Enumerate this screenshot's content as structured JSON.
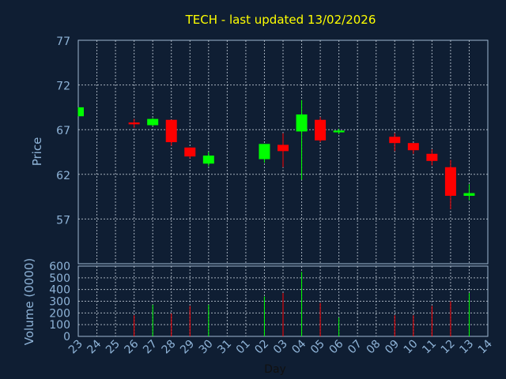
{
  "chart_data": {
    "type": "candlestick",
    "title": "TECH - last updated 13/02/2026",
    "price_panel": {
      "ylabel": "Price",
      "ylim": [
        52,
        77
      ],
      "yticks": [
        "57",
        "62",
        "67",
        "72",
        "77"
      ]
    },
    "volume_panel": {
      "ylabel": "Volume (0000)",
      "ylim": [
        0,
        600
      ],
      "yticks": [
        "0",
        "100",
        "200",
        "300",
        "400",
        "500",
        "600"
      ]
    },
    "xlabel": "Day",
    "x_ticks": [
      "23",
      "24",
      "25",
      "26",
      "27",
      "28",
      "29",
      "30",
      "31",
      "01",
      "02",
      "03",
      "04",
      "05",
      "06",
      "07",
      "08",
      "09",
      "10",
      "11",
      "12",
      "13",
      "14"
    ],
    "candles": [
      {
        "day": "23",
        "open": 68.5,
        "close": 69.5,
        "high": 69.5,
        "low": 68.5,
        "volume": 0
      },
      {
        "day": "26",
        "open": 67.8,
        "close": 67.6,
        "high": 68.2,
        "low": 67.2,
        "volume": 180
      },
      {
        "day": "27",
        "open": 67.5,
        "close": 68.2,
        "high": 68.3,
        "low": 67.4,
        "volume": 270
      },
      {
        "day": "28",
        "open": 68.1,
        "close": 65.6,
        "high": 68.1,
        "low": 65.2,
        "volume": 195
      },
      {
        "day": "29",
        "open": 65.0,
        "close": 64.0,
        "high": 65.0,
        "low": 63.8,
        "volume": 260
      },
      {
        "day": "30",
        "open": 63.2,
        "close": 64.1,
        "high": 64.5,
        "low": 62.9,
        "volume": 270
      },
      {
        "day": "02",
        "open": 63.7,
        "close": 65.4,
        "high": 65.4,
        "low": 63.3,
        "volume": 340
      },
      {
        "day": "03",
        "open": 65.3,
        "close": 64.6,
        "high": 66.6,
        "low": 62.8,
        "volume": 370
      },
      {
        "day": "04",
        "open": 66.8,
        "close": 68.7,
        "high": 70.3,
        "low": 61.4,
        "volume": 550
      },
      {
        "day": "05",
        "open": 68.1,
        "close": 65.8,
        "high": 68.4,
        "low": 65.6,
        "volume": 285
      },
      {
        "day": "06",
        "open": 66.7,
        "close": 66.9,
        "high": 67.1,
        "low": 66.5,
        "volume": 160
      },
      {
        "day": "09",
        "open": 66.2,
        "close": 65.5,
        "high": 66.6,
        "low": 64.6,
        "volume": 180
      },
      {
        "day": "10",
        "open": 65.5,
        "close": 64.7,
        "high": 65.5,
        "low": 64.3,
        "volume": 180
      },
      {
        "day": "11",
        "open": 64.3,
        "close": 63.5,
        "high": 64.8,
        "low": 63.0,
        "volume": 260
      },
      {
        "day": "12",
        "open": 62.8,
        "close": 59.6,
        "high": 63.6,
        "low": 58.1,
        "volume": 300
      },
      {
        "day": "13",
        "open": 59.6,
        "close": 59.9,
        "high": 60.9,
        "low": 59.1,
        "volume": 370
      }
    ],
    "colors": {
      "background": "#0f1e33",
      "up": "#00ff00",
      "down": "#ff0000",
      "title": "#ffff00",
      "text": "#8fb4d8"
    },
    "grid": true
  }
}
